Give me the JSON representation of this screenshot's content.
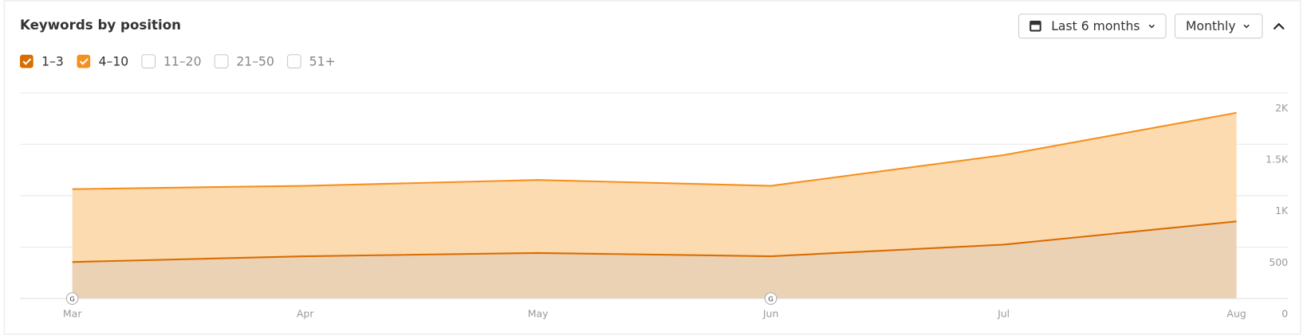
{
  "chart_data": {
    "type": "stacked-area",
    "title": "Keywords by position",
    "controls": [
      "Last 6 months",
      "Monthly"
    ],
    "categories": [
      "Mar",
      "Apr",
      "May",
      "Jun",
      "Jul",
      "Aug"
    ],
    "series": [
      {
        "name": "1–3",
        "color": "#d96d00",
        "fill": "#ecd2b5",
        "values": [
          355,
          411,
          443,
          411,
          524,
          750
        ]
      },
      {
        "name": "4–10",
        "color": "#f5901f",
        "fill": "#fddbb0",
        "values": [
          709,
          685,
          710,
          685,
          871,
          1056
        ]
      }
    ],
    "unchecked_series": [
      "11–20",
      "21–50",
      "51+"
    ],
    "annotations": [
      {
        "x": "Mar",
        "label": "G"
      },
      {
        "x": "Jun",
        "label": "G"
      }
    ],
    "ylim": [
      0,
      2000
    ],
    "yticks": [
      0,
      500,
      {
        "value": 1000,
        "label": "1K"
      },
      {
        "value": 1500,
        "label": "1.5K"
      },
      {
        "value": 2000,
        "label": "2K"
      }
    ],
    "grid": true
  }
}
